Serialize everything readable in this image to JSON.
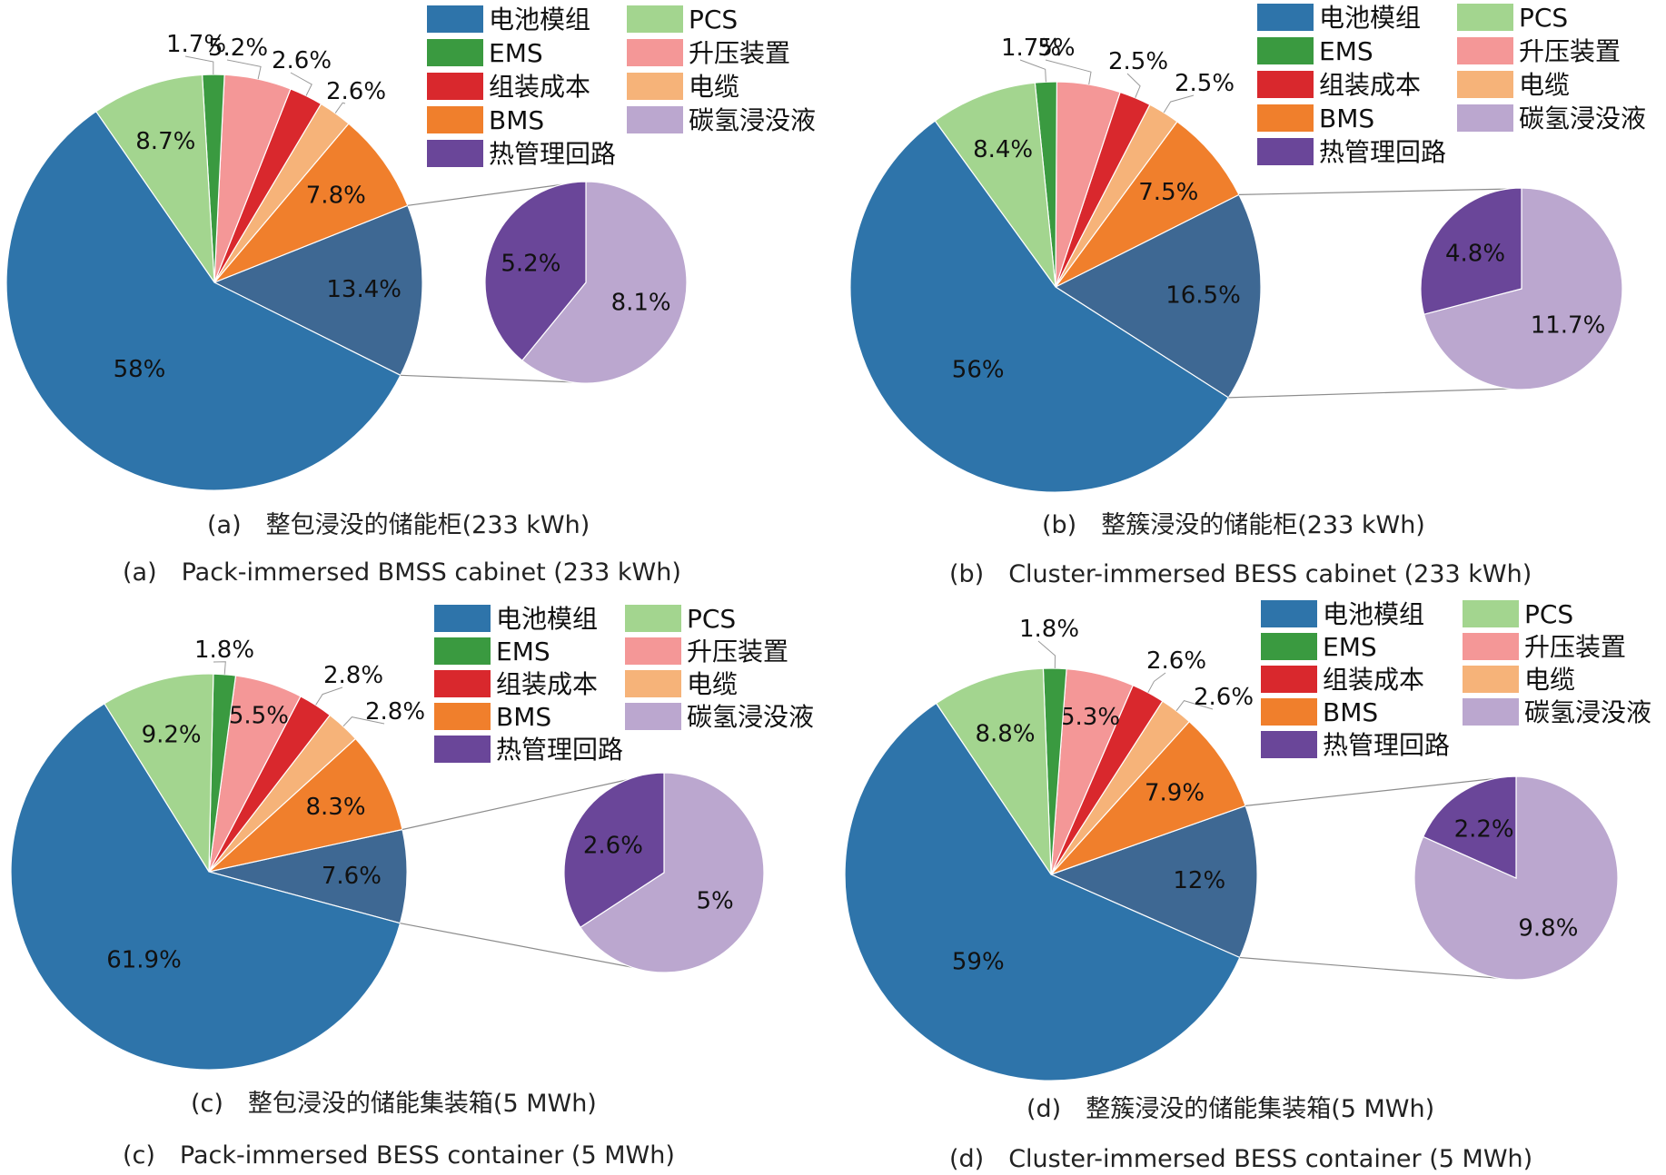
{
  "colors": {
    "电池模组": "#2e74aa",
    "PCS": "#a3d58f",
    "EMS": "#3a9a40",
    "升压装置": "#f49797",
    "组装成本": "#d9282d",
    "电缆": "#f6b379",
    "BMS": "#f07f2c",
    "碳氢浸没液": "#bba7cf",
    "热管理回路": "#6a4699",
    "thermal_group": "#3e6893",
    "outline": "#ffffff",
    "connector": "#8c8c8c"
  },
  "legend": {
    "col1": [
      "电池模组",
      "EMS",
      "组装成本",
      "BMS",
      "热管理回路"
    ],
    "col2": [
      "PCS",
      "升压装置",
      "电缆",
      "碳氢浸没液"
    ]
  },
  "chart_data": [
    {
      "type": "pie",
      "caption_zh": "(a)　整包浸没的储能柜(233 kWh)",
      "caption_en": "(a)　Pack-immersed BMSS cabinet (233 kWh)",
      "slices": [
        {
          "name": "热管理回路",
          "value": 13.4,
          "label": "13.4%",
          "group": true
        },
        {
          "name": "BMS",
          "value": 7.8,
          "label": "7.8%"
        },
        {
          "name": "电缆",
          "value": 2.6,
          "label": "2.6%"
        },
        {
          "name": "组装成本",
          "value": 2.6,
          "label": "2.6%"
        },
        {
          "name": "升压装置",
          "value": 5.2,
          "label": "5.2%"
        },
        {
          "name": "EMS",
          "value": 1.7,
          "label": "1.7%"
        },
        {
          "name": "PCS",
          "value": 8.7,
          "label": "8.7%"
        },
        {
          "name": "电池模组",
          "value": 58,
          "label": "58%"
        }
      ],
      "sub": [
        {
          "name": "碳氢浸没液",
          "value": 8.1,
          "label": "8.1%"
        },
        {
          "name": "热管理回路",
          "value": 5.2,
          "label": "5.2%"
        }
      ]
    },
    {
      "type": "pie",
      "caption_zh": "(b)　整簇浸没的储能柜(233 kWh)",
      "caption_en": "(b)　Cluster-immersed BESS cabinet (233 kWh)",
      "slices": [
        {
          "name": "热管理回路",
          "value": 16.5,
          "label": "16.5%",
          "group": true
        },
        {
          "name": "BMS",
          "value": 7.5,
          "label": "7.5%"
        },
        {
          "name": "电缆",
          "value": 2.5,
          "label": "2.5%"
        },
        {
          "name": "组装成本",
          "value": 2.5,
          "label": "2.5%"
        },
        {
          "name": "升压装置",
          "value": 5,
          "label": "5%"
        },
        {
          "name": "EMS",
          "value": 1.7,
          "label": "1.7%"
        },
        {
          "name": "PCS",
          "value": 8.4,
          "label": "8.4%"
        },
        {
          "name": "电池模组",
          "value": 56,
          "label": "56%"
        }
      ],
      "sub": [
        {
          "name": "碳氢浸没液",
          "value": 11.7,
          "label": "11.7%"
        },
        {
          "name": "热管理回路",
          "value": 4.8,
          "label": "4.8%"
        }
      ]
    },
    {
      "type": "pie",
      "caption_zh": "(c)　整包浸没的储能集装箱(5 MWh)",
      "caption_en": "(c)　Pack-immersed BESS container (5 MWh)",
      "slices": [
        {
          "name": "热管理回路",
          "value": 7.6,
          "label": "7.6%",
          "group": true
        },
        {
          "name": "BMS",
          "value": 8.3,
          "label": "8.3%"
        },
        {
          "name": "电缆",
          "value": 2.8,
          "label": "2.8%"
        },
        {
          "name": "组装成本",
          "value": 2.8,
          "label": "2.8%"
        },
        {
          "name": "升压装置",
          "value": 5.5,
          "label": "5.5%"
        },
        {
          "name": "EMS",
          "value": 1.8,
          "label": "1.8%"
        },
        {
          "name": "PCS",
          "value": 9.2,
          "label": "9.2%"
        },
        {
          "name": "电池模组",
          "value": 61.9,
          "label": "61.9%"
        }
      ],
      "sub": [
        {
          "name": "碳氢浸没液",
          "value": 5,
          "label": "5%"
        },
        {
          "name": "热管理回路",
          "value": 2.6,
          "label": "2.6%"
        }
      ]
    },
    {
      "type": "pie",
      "caption_zh": "(d)　整簇浸没的储能集装箱(5 MWh)",
      "caption_en": "(d)　Cluster-immersed BESS container (5 MWh)",
      "slices": [
        {
          "name": "热管理回路",
          "value": 12,
          "label": "12%",
          "group": true
        },
        {
          "name": "BMS",
          "value": 7.9,
          "label": "7.9%"
        },
        {
          "name": "电缆",
          "value": 2.6,
          "label": "2.6%"
        },
        {
          "name": "组装成本",
          "value": 2.6,
          "label": "2.6%"
        },
        {
          "name": "升压装置",
          "value": 5.3,
          "label": "5.3%"
        },
        {
          "name": "EMS",
          "value": 1.8,
          "label": "1.8%"
        },
        {
          "name": "PCS",
          "value": 8.8,
          "label": "8.8%"
        },
        {
          "name": "电池模组",
          "value": 59,
          "label": "59%"
        }
      ],
      "sub": [
        {
          "name": "碳氢浸没液",
          "value": 9.8,
          "label": "9.8%"
        },
        {
          "name": "热管理回路",
          "value": 2.2,
          "label": "2.2%"
        }
      ]
    }
  ]
}
